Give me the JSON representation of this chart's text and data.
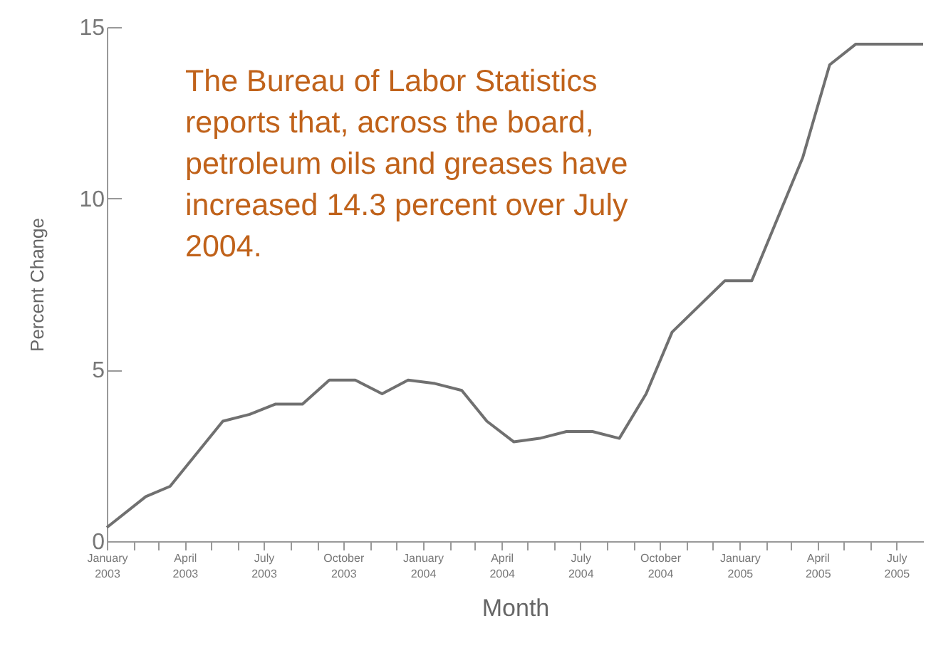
{
  "chart_data": {
    "type": "line",
    "xlabel": "Month",
    "ylabel": "Percent Change",
    "annotations": [
      "The Bureau of Labor Statistics reports that, across the board, petroleum oils and greases have increased 14.3 percent over July 2004."
    ],
    "x": [
      "2003-01-01",
      "2003-02-15",
      "2003-03-15",
      "2003-05-15",
      "2003-06-15",
      "2003-07-15",
      "2003-08-15",
      "2003-09-15",
      "2003-10-15",
      "2003-11-15",
      "2003-12-15",
      "2004-01-15",
      "2004-02-15",
      "2004-03-15",
      "2004-04-15",
      "2004-05-15",
      "2004-06-15",
      "2004-07-15",
      "2004-08-15",
      "2004-09-15",
      "2004-10-15",
      "2004-12-15",
      "2005-01-15",
      "2005-03-15",
      "2005-04-15",
      "2005-05-15",
      "2005-08-01"
    ],
    "series": [
      {
        "color": "#707070",
        "values": [
          0.4,
          1.3,
          1.6,
          3.5,
          3.7,
          4.0,
          4.0,
          4.7,
          4.7,
          4.3,
          4.7,
          4.6,
          4.4,
          3.5,
          2.9,
          3.0,
          3.2,
          3.2,
          3.0,
          4.3,
          6.1,
          7.6,
          7.6,
          11.2,
          13.9,
          14.5,
          14.5
        ]
      }
    ],
    "xlim": [
      "2003-01-01",
      "2005-08-01"
    ],
    "ylim": [
      0,
      15
    ],
    "yticks": [
      0,
      5,
      10,
      15
    ],
    "xticks": [
      {
        "value": "2003-01",
        "label": "January 2003"
      },
      {
        "value": "2003-02",
        "label": null
      },
      {
        "value": "2003-03",
        "label": null
      },
      {
        "value": "2003-04",
        "label": "April 2003"
      },
      {
        "value": "2003-05",
        "label": null
      },
      {
        "value": "2003-06",
        "label": null
      },
      {
        "value": "2003-07",
        "label": "July 2003"
      },
      {
        "value": "2003-08",
        "label": null
      },
      {
        "value": "2003-09",
        "label": null
      },
      {
        "value": "2003-10",
        "label": "October 2003"
      },
      {
        "value": "2003-11",
        "label": null
      },
      {
        "value": "2003-12",
        "label": null
      },
      {
        "value": "2004-01",
        "label": "January 2004"
      },
      {
        "value": "2004-02",
        "label": null
      },
      {
        "value": "2004-03",
        "label": null
      },
      {
        "value": "2004-04",
        "label": "April 2004"
      },
      {
        "value": "2004-05",
        "label": null
      },
      {
        "value": "2004-06",
        "label": null
      },
      {
        "value": "2004-07",
        "label": "July 2004"
      },
      {
        "value": "2004-08",
        "label": null
      },
      {
        "value": "2004-09",
        "label": null
      },
      {
        "value": "2004-10",
        "label": "October 2004"
      },
      {
        "value": "2004-11",
        "label": null
      },
      {
        "value": "2004-12",
        "label": null
      },
      {
        "value": "2005-01",
        "label": "January 2005"
      },
      {
        "value": "2005-02",
        "label": null
      },
      {
        "value": "2005-03",
        "label": null
      },
      {
        "value": "2005-04",
        "label": "April 2005"
      },
      {
        "value": "2005-05",
        "label": null
      },
      {
        "value": "2005-06",
        "label": null
      },
      {
        "value": "2005-07",
        "label": "July 2005"
      }
    ],
    "grid": false,
    "marker": "none",
    "line_style": "solid"
  }
}
